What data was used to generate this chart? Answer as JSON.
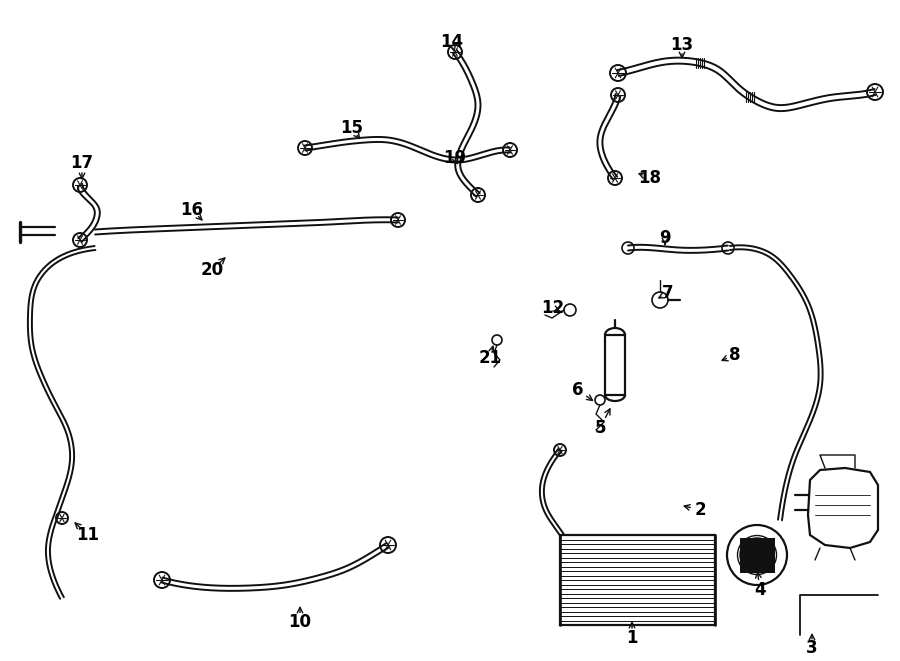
{
  "bg_color": "#ffffff",
  "line_color": "#111111",
  "lw": 1.6,
  "figsize": [
    9.0,
    6.61
  ],
  "dpi": 100
}
